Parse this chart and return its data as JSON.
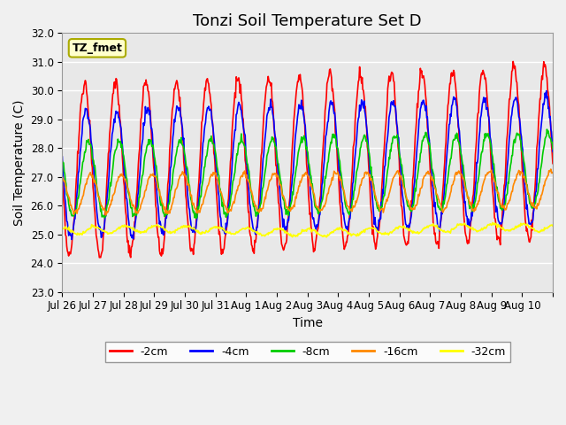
{
  "title": "Tonzi Soil Temperature Set D",
  "xlabel": "Time",
  "ylabel": "Soil Temperature (C)",
  "ylim": [
    23.0,
    32.0
  ],
  "yticks": [
    23.0,
    24.0,
    25.0,
    26.0,
    27.0,
    28.0,
    29.0,
    30.0,
    31.0,
    32.0
  ],
  "xtick_labels": [
    "Jul 26",
    "Jul 27",
    "Jul 28",
    "Jul 29",
    "Jul 30",
    "Jul 31",
    "Aug 1",
    "Aug 2",
    "Aug 3",
    "Aug 4",
    "Aug 5",
    "Aug 6",
    "Aug 7",
    "Aug 8",
    "Aug 9",
    "Aug 10",
    ""
  ],
  "n_days": 16,
  "pts_per_day": 48,
  "annotation_text": "TZ_fmet",
  "legend_labels": [
    "-2cm",
    "-4cm",
    "-8cm",
    "-16cm",
    "-32cm"
  ],
  "colors": [
    "#FF0000",
    "#0000FF",
    "#00CC00",
    "#FF8800",
    "#FFFF00"
  ],
  "line_width": 1.2,
  "axes_bg": "#E8E8E8",
  "fig_bg": "#F0F0F0",
  "grid_color": "#FFFFFF",
  "title_fontsize": 13,
  "axis_label_fontsize": 10,
  "tick_fontsize": 8.5,
  "annotation_bbox_facecolor": "#FFFFCC",
  "annotation_bbox_edgecolor": "#AAAA00"
}
